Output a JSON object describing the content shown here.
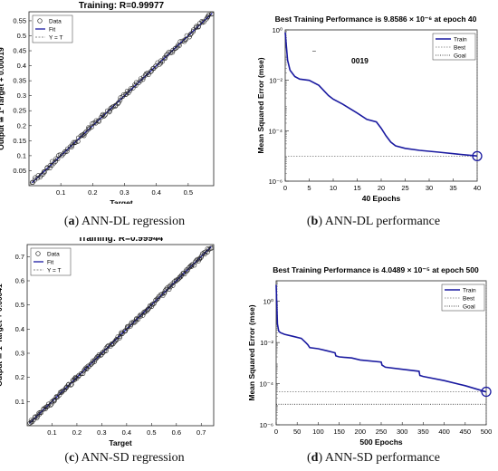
{
  "captions": {
    "a_letter": "a",
    "a_text": "ANN-DL regression",
    "b_letter": "b",
    "b_text": "ANN-DL performance",
    "c_letter": "c",
    "c_text": "ANN-SD regression",
    "d_letter": "d",
    "d_text": "ANN-SD performance"
  },
  "stray_text": {
    "b_dash": "–",
    "b_code": "0019"
  },
  "colors": {
    "fit": "#1a1aa0",
    "train": "#1a1aa0",
    "best": "#777777",
    "data": "#222222"
  },
  "chart_data": [
    {
      "id": "a",
      "type": "scatter",
      "title": "Training: R=0.99977",
      "xlabel": "Target",
      "ylabel": "Output ≅ 1*Target + 0.00019",
      "xlim": [
        0,
        0.58
      ],
      "ylim": [
        0,
        0.58
      ],
      "xticks": [
        0.1,
        0.2,
        0.3,
        0.4,
        0.5
      ],
      "xtick_labels": [
        "0.1",
        "0.2",
        "0.3",
        "0.4",
        "0.5"
      ],
      "yticks": [
        0.05,
        0.1,
        0.15,
        0.2,
        0.25,
        0.3,
        0.35,
        0.4,
        0.45,
        0.5,
        0.55
      ],
      "ytick_labels": [
        "0.05",
        "0.1",
        "0.15",
        "0.2",
        "0.25",
        "0.3",
        "0.35",
        "0.4",
        "0.45",
        "0.5",
        "0.55"
      ],
      "legend": [
        "Data",
        "Fit",
        "Y = T"
      ],
      "legend_position": "top-left",
      "fit": {
        "slope": 1,
        "intercept": 0.00019
      },
      "data_range": [
        0.01,
        0.575
      ],
      "n_points": 140
    },
    {
      "id": "b",
      "type": "line",
      "title": "Best Training Performance is 9.8586 × 10⁻⁶ at epoch 40",
      "xlabel": "40 Epochs",
      "ylabel": "Mean Squared Error  (mse)",
      "xlim": [
        0,
        40
      ],
      "ylim_log10": [
        -6,
        0
      ],
      "xticks": [
        0,
        5,
        10,
        15,
        20,
        25,
        30,
        35,
        40
      ],
      "xtick_labels": [
        "0",
        "5",
        "10",
        "15",
        "20",
        "25",
        "30",
        "35",
        "40"
      ],
      "yticks_log10": [
        0,
        -2,
        -4,
        -6
      ],
      "ytick_labels": [
        "10⁰",
        "10⁻²",
        "10⁻⁴",
        "10⁻⁶"
      ],
      "legend": [
        "Train",
        "Best",
        "Goal"
      ],
      "legend_position": "top-right",
      "best": {
        "epoch": 40,
        "value": 9.8586e-06
      },
      "series": [
        {
          "name": "Train",
          "x": [
            0,
            0.5,
            1,
            2,
            3,
            5,
            7,
            9,
            10,
            12,
            15,
            17,
            19,
            20,
            21,
            22,
            23,
            25,
            28,
            32,
            36,
            40
          ],
          "log10_y": [
            -0.1,
            -1.2,
            -1.6,
            -1.85,
            -1.95,
            -2.0,
            -2.2,
            -2.6,
            -2.75,
            -2.95,
            -3.3,
            -3.55,
            -3.65,
            -3.9,
            -4.2,
            -4.45,
            -4.6,
            -4.7,
            -4.78,
            -4.85,
            -4.93,
            -5.0
          ]
        }
      ]
    },
    {
      "id": "c",
      "type": "scatter",
      "title": "Training: R=0.99944",
      "xlabel": "Target",
      "ylabel": "Output ≅ 1*Target + 0.00041",
      "xlim": [
        0,
        0.75
      ],
      "ylim": [
        0,
        0.75
      ],
      "xticks": [
        0.1,
        0.2,
        0.3,
        0.4,
        0.5,
        0.6,
        0.7
      ],
      "xtick_labels": [
        "0.1",
        "0.2",
        "0.3",
        "0.4",
        "0.5",
        "0.6",
        "0.7"
      ],
      "yticks": [
        0.1,
        0.2,
        0.3,
        0.4,
        0.5,
        0.6,
        0.7
      ],
      "ytick_labels": [
        "0.1",
        "0.2",
        "0.3",
        "0.4",
        "0.5",
        "0.6",
        "0.7"
      ],
      "legend": [
        "Data",
        "Fit",
        "Y = T"
      ],
      "legend_position": "top-left",
      "fit": {
        "slope": 1,
        "intercept": 0.00041
      },
      "data_range": [
        0.01,
        0.74
      ],
      "n_points": 180
    },
    {
      "id": "d",
      "type": "line",
      "title": "Best Training Performance is 4.0489 × 10⁻⁵ at epoch 500",
      "xlabel": "500 Epochs",
      "ylabel": "Mean Squared Error  (mse)",
      "xlim": [
        0,
        500
      ],
      "ylim_log10": [
        -6,
        1
      ],
      "xticks": [
        0,
        50,
        100,
        150,
        200,
        250,
        300,
        350,
        400,
        450,
        500
      ],
      "xtick_labels": [
        "0",
        "50",
        "100",
        "150",
        "200",
        "250",
        "300",
        "350",
        "400",
        "450",
        "500"
      ],
      "yticks_log10": [
        0,
        -2,
        -4,
        -6
      ],
      "ytick_labels": [
        "10⁰",
        "10⁻²",
        "10⁻⁴",
        "10⁻⁶"
      ],
      "legend": [
        "Train",
        "Best",
        "Goal"
      ],
      "legend_position": "top-right",
      "best": {
        "epoch": 500,
        "value": 4.0489e-05
      },
      "goal_log10": -5,
      "series": [
        {
          "name": "Train",
          "x": [
            0,
            3,
            6,
            10,
            20,
            40,
            60,
            70,
            75,
            80,
            100,
            120,
            140,
            142,
            150,
            180,
            200,
            250,
            252,
            260,
            300,
            340,
            342,
            350,
            400,
            450,
            500
          ],
          "log10_y": [
            0.8,
            -1.1,
            -1.45,
            -1.52,
            -1.6,
            -1.7,
            -1.8,
            -2.0,
            -2.1,
            -2.25,
            -2.3,
            -2.4,
            -2.5,
            -2.65,
            -2.7,
            -2.75,
            -2.85,
            -2.95,
            -3.1,
            -3.2,
            -3.3,
            -3.4,
            -3.6,
            -3.65,
            -3.85,
            -4.1,
            -4.4
          ]
        }
      ]
    }
  ]
}
